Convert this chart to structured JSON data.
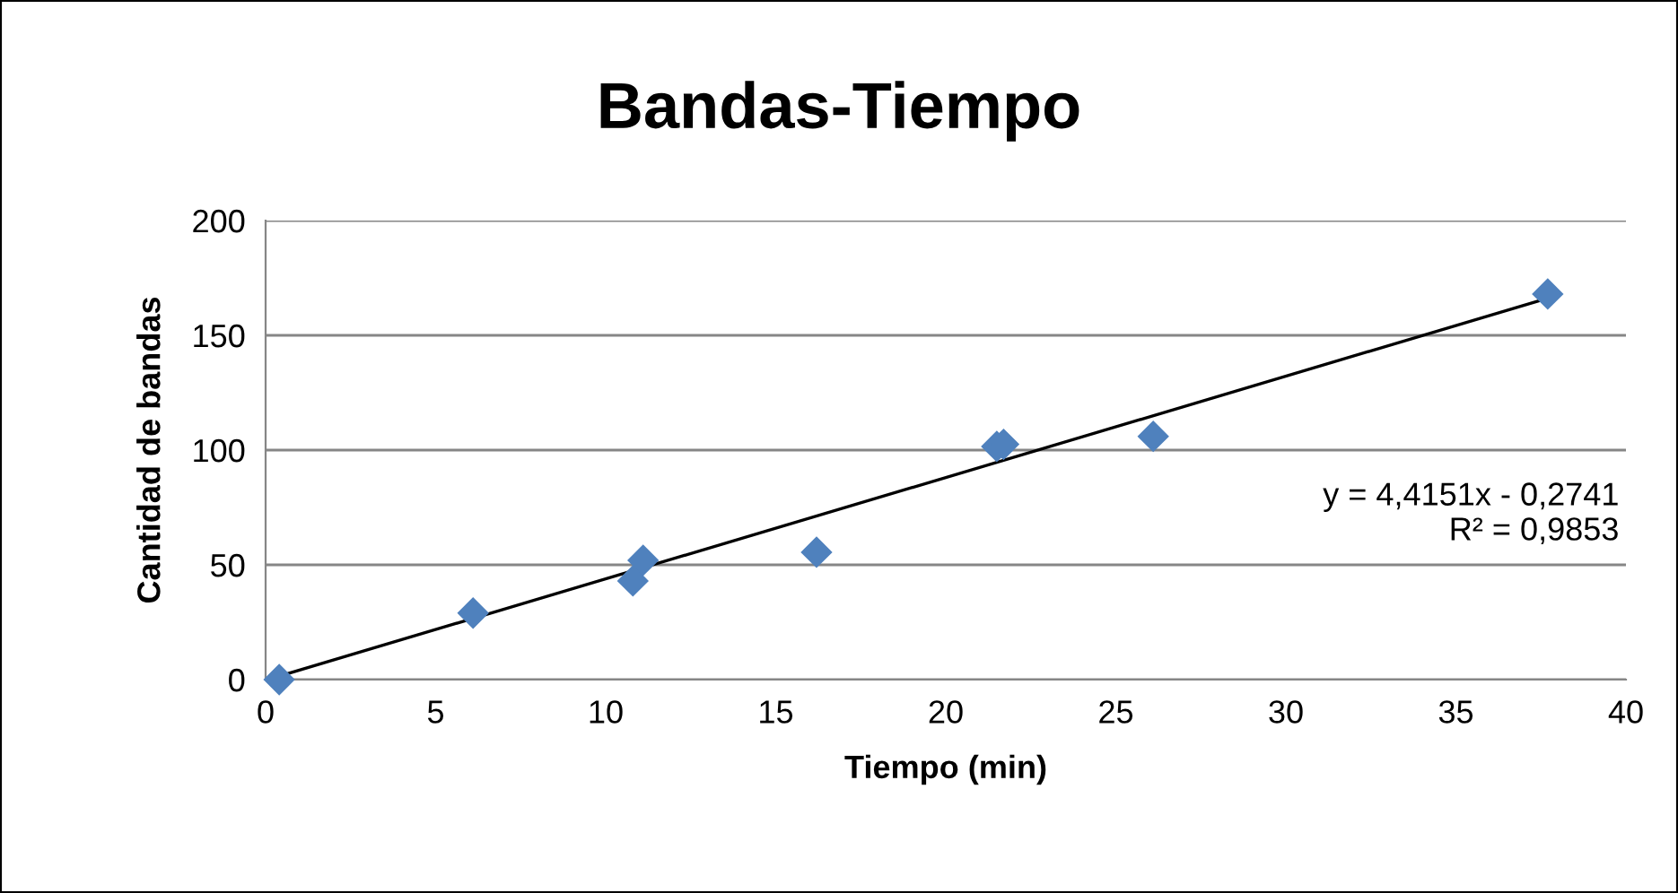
{
  "chart_data": {
    "type": "scatter",
    "title": "Bandas-Tiempo",
    "xlabel": "Tiempo (min)",
    "ylabel": "Cantidad de bandas",
    "series": [
      {
        "type": "scatter",
        "color": "#4f81bd",
        "marker": "diamond",
        "x": [
          0.4,
          6.1,
          10.8,
          11.1,
          16.2,
          21.5,
          21.7,
          26.1,
          37.7
        ],
        "values": [
          0,
          29,
          43,
          52,
          55.5,
          101.6,
          102.5,
          106,
          168
        ]
      },
      {
        "type": "line",
        "color": "#000000",
        "marker": "none",
        "x": [
          0.4,
          37.7
        ],
        "values": [
          1.5,
          166.2
        ]
      }
    ],
    "annotations": [
      "y = 4,4151x - 0,2741\nR² = 0,9853"
    ],
    "xlim": [
      0,
      40
    ],
    "xticks": [
      0,
      5,
      10,
      15,
      20,
      25,
      30,
      35,
      40
    ],
    "ylim": [
      0,
      200
    ],
    "yticks": [
      0,
      50,
      100,
      150,
      200
    ],
    "grid": "y",
    "legend": false
  }
}
